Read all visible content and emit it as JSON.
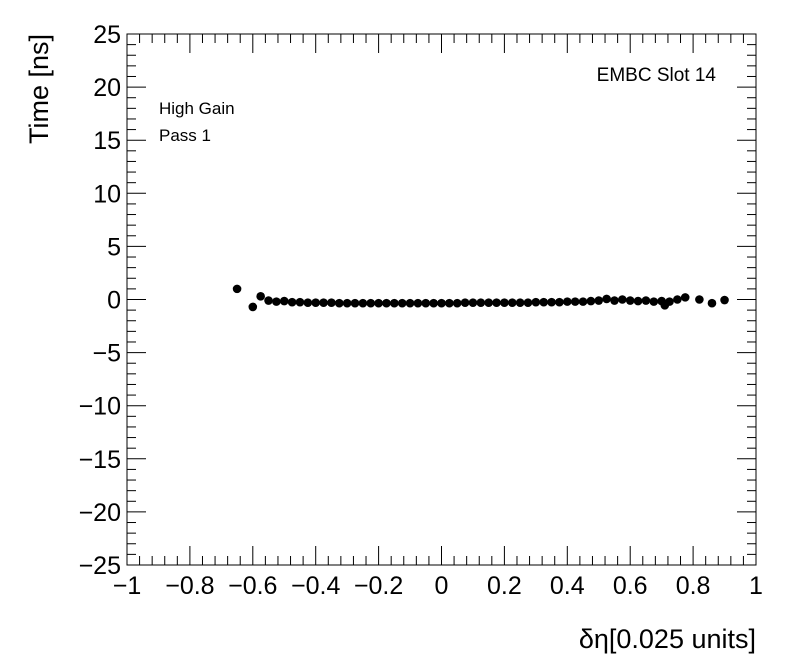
{
  "chart_data": {
    "type": "scatter",
    "title": "",
    "xlabel": "δη[0.025 units]",
    "ylabel": "Time [ns]",
    "xlim": [
      -1,
      1
    ],
    "ylim": [
      -25,
      25
    ],
    "xticks": [
      -1,
      -0.8,
      -0.6,
      -0.4,
      -0.2,
      0,
      0.2,
      0.4,
      0.6,
      0.8,
      1
    ],
    "xtick_labels": [
      "−1",
      "−0.8",
      "−0.6",
      "−0.4",
      "−0.2",
      "0",
      "0.2",
      "0.4",
      "0.6",
      "0.8",
      "1"
    ],
    "yticks": [
      -25,
      -20,
      -15,
      -10,
      -5,
      0,
      5,
      10,
      15,
      20,
      25
    ],
    "ytick_labels": [
      "−25",
      "−20",
      "−15",
      "−10",
      "−5",
      "0",
      "5",
      "10",
      "15",
      "20",
      "25"
    ],
    "grid": false,
    "annotations": {
      "top_right": "EMBC Slot 14",
      "gain": "High Gain",
      "pass": "Pass 1"
    },
    "series": [
      {
        "marker_color": "#000000",
        "points": [
          [
            -0.65,
            1.0
          ],
          [
            -0.6,
            -0.7
          ],
          [
            -0.575,
            0.3
          ],
          [
            -0.55,
            -0.1
          ],
          [
            -0.525,
            -0.2
          ],
          [
            -0.5,
            -0.15
          ],
          [
            -0.475,
            -0.25
          ],
          [
            -0.45,
            -0.25
          ],
          [
            -0.425,
            -0.3
          ],
          [
            -0.4,
            -0.3
          ],
          [
            -0.375,
            -0.3
          ],
          [
            -0.35,
            -0.3
          ],
          [
            -0.325,
            -0.35
          ],
          [
            -0.3,
            -0.35
          ],
          [
            -0.275,
            -0.35
          ],
          [
            -0.25,
            -0.35
          ],
          [
            -0.225,
            -0.35
          ],
          [
            -0.2,
            -0.35
          ],
          [
            -0.175,
            -0.35
          ],
          [
            -0.15,
            -0.35
          ],
          [
            -0.125,
            -0.35
          ],
          [
            -0.1,
            -0.35
          ],
          [
            -0.075,
            -0.35
          ],
          [
            -0.05,
            -0.35
          ],
          [
            -0.025,
            -0.35
          ],
          [
            0.0,
            -0.35
          ],
          [
            0.025,
            -0.35
          ],
          [
            0.05,
            -0.35
          ],
          [
            0.075,
            -0.3
          ],
          [
            0.1,
            -0.3
          ],
          [
            0.125,
            -0.3
          ],
          [
            0.15,
            -0.3
          ],
          [
            0.175,
            -0.3
          ],
          [
            0.2,
            -0.3
          ],
          [
            0.225,
            -0.3
          ],
          [
            0.25,
            -0.3
          ],
          [
            0.275,
            -0.3
          ],
          [
            0.3,
            -0.25
          ],
          [
            0.325,
            -0.25
          ],
          [
            0.35,
            -0.25
          ],
          [
            0.375,
            -0.25
          ],
          [
            0.4,
            -0.2
          ],
          [
            0.425,
            -0.2
          ],
          [
            0.45,
            -0.2
          ],
          [
            0.475,
            -0.15
          ],
          [
            0.5,
            -0.1
          ],
          [
            0.525,
            0.05
          ],
          [
            0.55,
            -0.1
          ],
          [
            0.575,
            0.0
          ],
          [
            0.6,
            -0.1
          ],
          [
            0.625,
            -0.15
          ],
          [
            0.65,
            -0.1
          ],
          [
            0.675,
            -0.2
          ],
          [
            0.7,
            -0.15
          ],
          [
            0.71,
            -0.55
          ],
          [
            0.725,
            -0.2
          ],
          [
            0.75,
            0.0
          ],
          [
            0.775,
            0.2
          ],
          [
            0.82,
            0.0
          ],
          [
            0.86,
            -0.35
          ],
          [
            0.9,
            -0.05
          ]
        ]
      }
    ]
  }
}
